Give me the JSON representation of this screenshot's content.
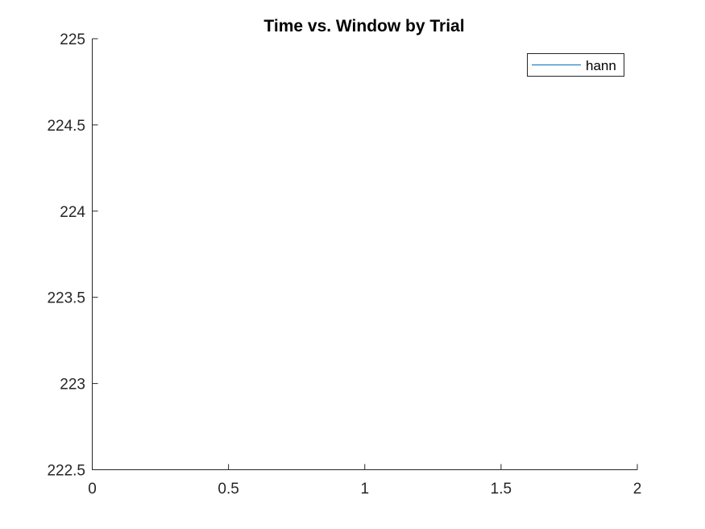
{
  "chart_data": {
    "type": "line",
    "title": "Time vs. Window by Trial",
    "xlabel": "",
    "ylabel": "",
    "xlim": [
      0,
      2
    ],
    "ylim": [
      222.5,
      225
    ],
    "x_ticks": [
      "0",
      "0.5",
      "1",
      "1.5",
      "2"
    ],
    "y_ticks": [
      "222.5",
      "223",
      "223.5",
      "224",
      "224.5",
      "225"
    ],
    "grid": false,
    "legend_position": "top-right",
    "series": [
      {
        "name": "hann",
        "color": "#0072BD",
        "x": [],
        "y": []
      }
    ]
  }
}
